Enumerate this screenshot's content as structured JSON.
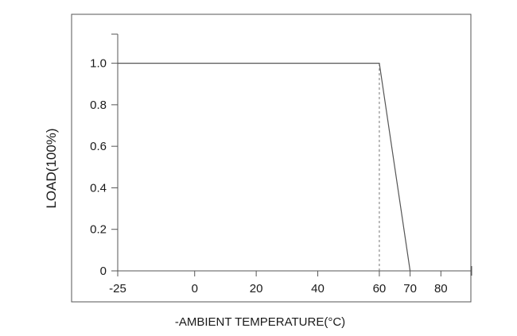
{
  "chart_data": {
    "type": "line",
    "title": "",
    "xlabel": "-AMBIENT TEMPERATURE(°C)",
    "ylabel": "LOAD(100%)",
    "x_ticks": [
      -25,
      0,
      20,
      40,
      60,
      70,
      80
    ],
    "x_tick_labels": [
      "-25",
      "0",
      "20",
      "40",
      "60",
      "70",
      "80"
    ],
    "y_ticks": [
      0,
      0.2,
      0.4,
      0.6,
      0.8,
      1.0
    ],
    "y_tick_labels": [
      "0",
      "0.2",
      "0.4",
      "0.6",
      "0.8",
      "1.0"
    ],
    "xlim": [
      -25,
      90
    ],
    "ylim": [
      0,
      1.14
    ],
    "grid": false,
    "series": [
      {
        "x": [
          -25,
          60,
          70
        ],
        "y": [
          1.0,
          1.0,
          0
        ]
      }
    ],
    "reference_lines": [
      {
        "orientation": "vertical",
        "x": 60,
        "y_range": [
          0,
          1.0
        ],
        "style": "dashed"
      }
    ]
  }
}
